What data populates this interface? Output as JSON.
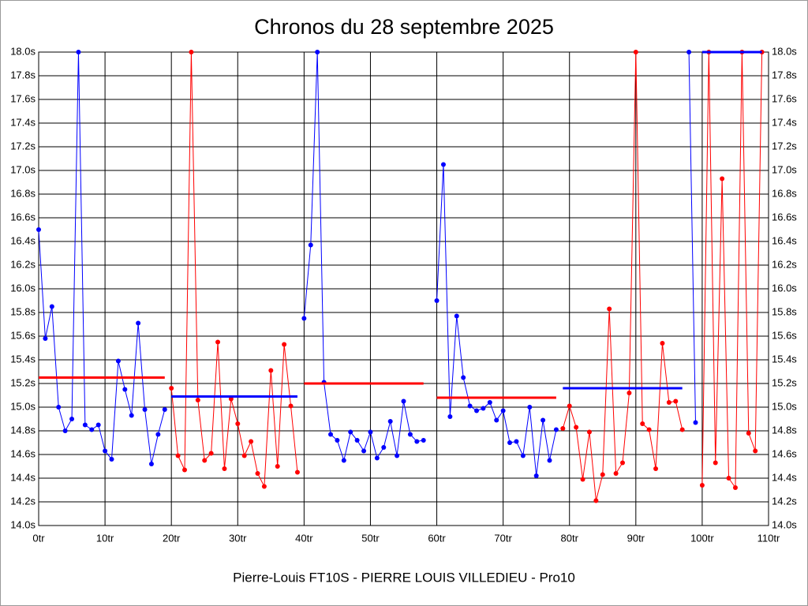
{
  "chart_data": {
    "type": "line",
    "title": "Chronos du 28 septembre 2025",
    "x_label": "Pierre-Louis FT10S - PIERRE LOUIS VILLEDIEU - Pro10",
    "xlim": [
      0,
      110
    ],
    "ylim": [
      14.0,
      18.0
    ],
    "grid": true,
    "xticks": [
      {
        "value": 0,
        "label": "0tr"
      },
      {
        "value": 10,
        "label": "10tr"
      },
      {
        "value": 20,
        "label": "20tr"
      },
      {
        "value": 30,
        "label": "30tr"
      },
      {
        "value": 40,
        "label": "40tr"
      },
      {
        "value": 50,
        "label": "50tr"
      },
      {
        "value": 60,
        "label": "60tr"
      },
      {
        "value": 70,
        "label": "70tr"
      },
      {
        "value": 80,
        "label": "80tr"
      },
      {
        "value": 90,
        "label": "90tr"
      },
      {
        "value": 100,
        "label": "100tr"
      },
      {
        "value": 110,
        "label": "110tr"
      }
    ],
    "yticks": [
      {
        "value": 14.0,
        "label": "14.0s"
      },
      {
        "value": 14.2,
        "label": "14.2s"
      },
      {
        "value": 14.4,
        "label": "14.4s"
      },
      {
        "value": 14.6,
        "label": "14.6s"
      },
      {
        "value": 14.8,
        "label": "14.8s"
      },
      {
        "value": 15.0,
        "label": "15.0s"
      },
      {
        "value": 15.2,
        "label": "15.2s"
      },
      {
        "value": 15.4,
        "label": "15.4s"
      },
      {
        "value": 15.6,
        "label": "15.6s"
      },
      {
        "value": 15.8,
        "label": "15.8s"
      },
      {
        "value": 16.0,
        "label": "16.0s"
      },
      {
        "value": 16.2,
        "label": "16.2s"
      },
      {
        "value": 16.4,
        "label": "16.4s"
      },
      {
        "value": 16.6,
        "label": "16.6s"
      },
      {
        "value": 16.8,
        "label": "16.8s"
      },
      {
        "value": 17.0,
        "label": "17.0s"
      },
      {
        "value": 17.2,
        "label": "17.2s"
      },
      {
        "value": 17.4,
        "label": "17.4s"
      },
      {
        "value": 17.6,
        "label": "17.6s"
      },
      {
        "value": 17.8,
        "label": "17.8s"
      },
      {
        "value": 18.0,
        "label": "18.0s"
      }
    ],
    "series": [
      {
        "color": "#0000ff",
        "x": [
          0,
          1,
          2,
          3,
          4,
          5,
          6,
          7,
          8,
          9,
          10,
          11,
          12,
          13,
          14,
          15,
          16,
          17,
          18,
          19
        ],
        "values": [
          16.5,
          15.58,
          15.85,
          15.0,
          14.8,
          14.9,
          18.0,
          14.85,
          14.81,
          14.85,
          14.63,
          14.56,
          15.39,
          15.15,
          14.93,
          15.71,
          14.98,
          14.52,
          14.77,
          14.98
        ]
      },
      {
        "color": "#ff0000",
        "x": [
          20,
          21,
          22,
          23,
          24,
          25,
          26,
          27,
          28,
          29,
          30,
          31,
          32,
          33,
          34,
          35,
          36,
          37,
          38,
          39
        ],
        "values": [
          15.16,
          14.59,
          14.47,
          18.0,
          15.06,
          14.55,
          14.61,
          15.55,
          14.48,
          15.07,
          14.86,
          14.59,
          14.71,
          14.44,
          14.33,
          15.31,
          14.5,
          15.53,
          15.01,
          14.45
        ]
      },
      {
        "color": "#0000ff",
        "x": [
          40,
          41,
          42,
          43,
          44,
          45,
          46,
          47,
          48,
          49,
          50,
          51,
          52,
          53,
          54,
          55,
          56,
          57,
          58
        ],
        "values": [
          15.75,
          16.37,
          18.0,
          15.21,
          14.77,
          14.72,
          14.55,
          14.79,
          14.72,
          14.63,
          14.79,
          14.57,
          14.66,
          14.88,
          14.59,
          15.05,
          14.77,
          14.71,
          14.72
        ]
      },
      {
        "color": "#0000ff",
        "x": [
          60,
          61,
          62,
          63,
          64,
          65,
          66,
          67,
          68,
          69,
          70,
          71,
          72,
          73,
          74,
          75,
          76,
          77,
          78
        ],
        "values": [
          15.9,
          17.05,
          14.92,
          15.77,
          15.25,
          15.01,
          14.97,
          14.99,
          15.04,
          14.89,
          14.97,
          14.7,
          14.71,
          14.59,
          15.0,
          14.42,
          14.89,
          14.55,
          14.81
        ]
      },
      {
        "color": "#ff0000",
        "x": [
          79,
          80,
          81,
          82,
          83,
          84,
          85,
          86,
          87,
          88,
          89,
          90,
          91,
          92,
          93,
          94,
          95,
          96,
          97
        ],
        "values": [
          14.82,
          15.01,
          14.83,
          14.39,
          14.79,
          14.21,
          14.43,
          15.83,
          14.44,
          14.53,
          15.12,
          18.0,
          14.86,
          14.81,
          14.48,
          15.54,
          15.04,
          15.05,
          14.81
        ]
      },
      {
        "color": "#0000ff",
        "x": [
          98,
          99
        ],
        "values": [
          18.0,
          14.87
        ]
      },
      {
        "color": "#ff0000",
        "x": [
          100,
          101,
          102,
          103,
          104,
          105,
          106,
          107,
          108,
          109
        ],
        "values": [
          14.34,
          18.0,
          14.53,
          16.93,
          14.4,
          14.32,
          18.0,
          14.78,
          14.63,
          18.0
        ]
      }
    ],
    "average_lines": [
      {
        "color": "#ff0000",
        "x": [
          0,
          19
        ],
        "value": 15.25
      },
      {
        "color": "#0000ff",
        "x": [
          20,
          39
        ],
        "value": 15.09
      },
      {
        "color": "#ff0000",
        "x": [
          40,
          58
        ],
        "value": 15.2
      },
      {
        "color": "#ff0000",
        "x": [
          60,
          78
        ],
        "value": 15.08
      },
      {
        "color": "#0000ff",
        "x": [
          79,
          97
        ],
        "value": 15.16
      },
      {
        "color": "#0000ff",
        "x": [
          100,
          109
        ],
        "value": 18.0
      }
    ]
  }
}
